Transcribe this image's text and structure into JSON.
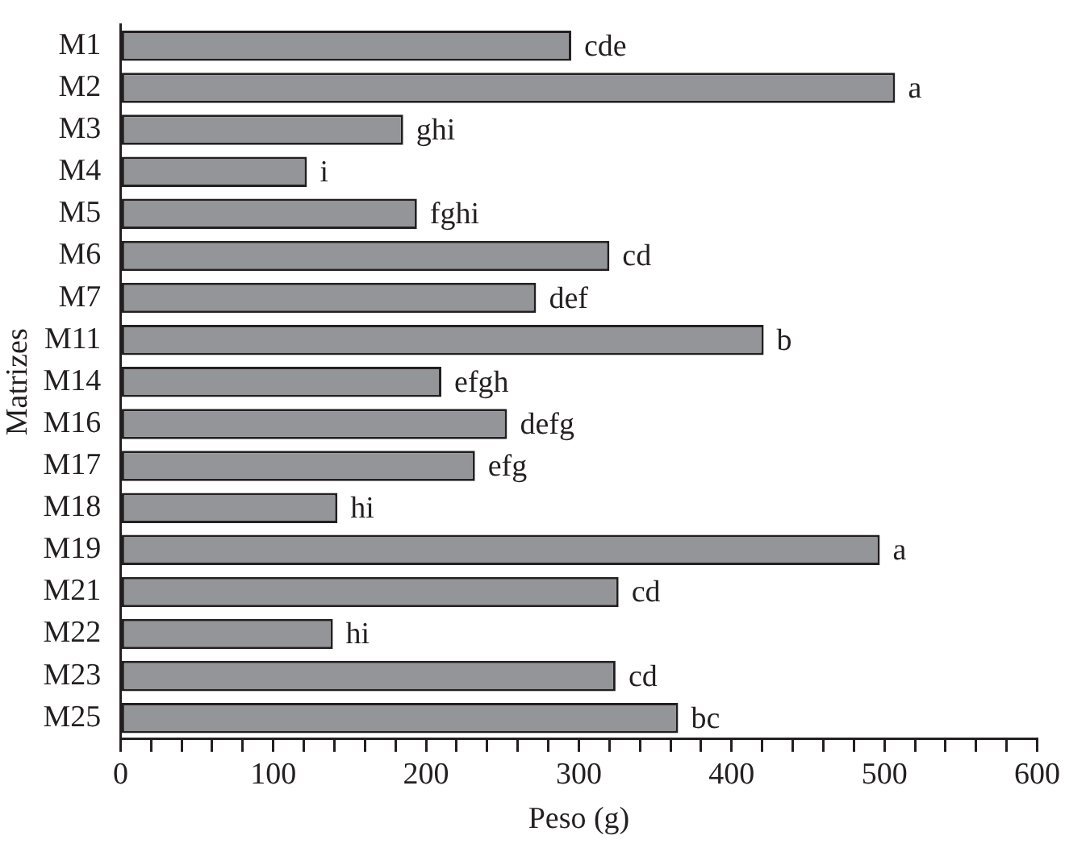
{
  "chart_data": {
    "type": "bar",
    "orientation": "horizontal",
    "xlabel": "Peso (g)",
    "ylabel": "Matrizes",
    "categories": [
      "M1",
      "M2",
      "M3",
      "M4",
      "M5",
      "M6",
      "M7",
      "M11",
      "M14",
      "M16",
      "M17",
      "M18",
      "M19",
      "M21",
      "M22",
      "M23",
      "M25"
    ],
    "values": [
      295,
      507,
      185,
      122,
      194,
      320,
      272,
      421,
      210,
      253,
      232,
      142,
      497,
      326,
      139,
      324,
      365
    ],
    "value_labels": [
      "cde",
      "a",
      "ghi",
      "i",
      "fghi",
      "cd",
      "def",
      "b",
      "efgh",
      "defg",
      "efg",
      "hi",
      "a",
      "cd",
      "hi",
      "cd",
      "bc"
    ],
    "color": "#939598",
    "xlim": [
      0,
      600
    ],
    "xticks": [
      0,
      {
        "value": 20,
        "label": null
      },
      {
        "value": 40,
        "label": null
      },
      {
        "value": 60,
        "label": null
      },
      {
        "value": 80,
        "label": null
      },
      100,
      {
        "value": 120,
        "label": null
      },
      {
        "value": 140,
        "label": null
      },
      {
        "value": 160,
        "label": null
      },
      {
        "value": 180,
        "label": null
      },
      200,
      {
        "value": 220,
        "label": null
      },
      {
        "value": 240,
        "label": null
      },
      {
        "value": 260,
        "label": null
      },
      {
        "value": 280,
        "label": null
      },
      300,
      {
        "value": 320,
        "label": null
      },
      {
        "value": 340,
        "label": null
      },
      {
        "value": 360,
        "label": null
      },
      {
        "value": 380,
        "label": null
      },
      400,
      {
        "value": 420,
        "label": null
      },
      {
        "value": 440,
        "label": null
      },
      {
        "value": 460,
        "label": null
      },
      {
        "value": 480,
        "label": null
      },
      500,
      {
        "value": 520,
        "label": null
      },
      {
        "value": 540,
        "label": null
      },
      {
        "value": 560,
        "label": null
      },
      {
        "value": 580,
        "label": null
      },
      600
    ],
    "grid": false,
    "legend": false
  }
}
